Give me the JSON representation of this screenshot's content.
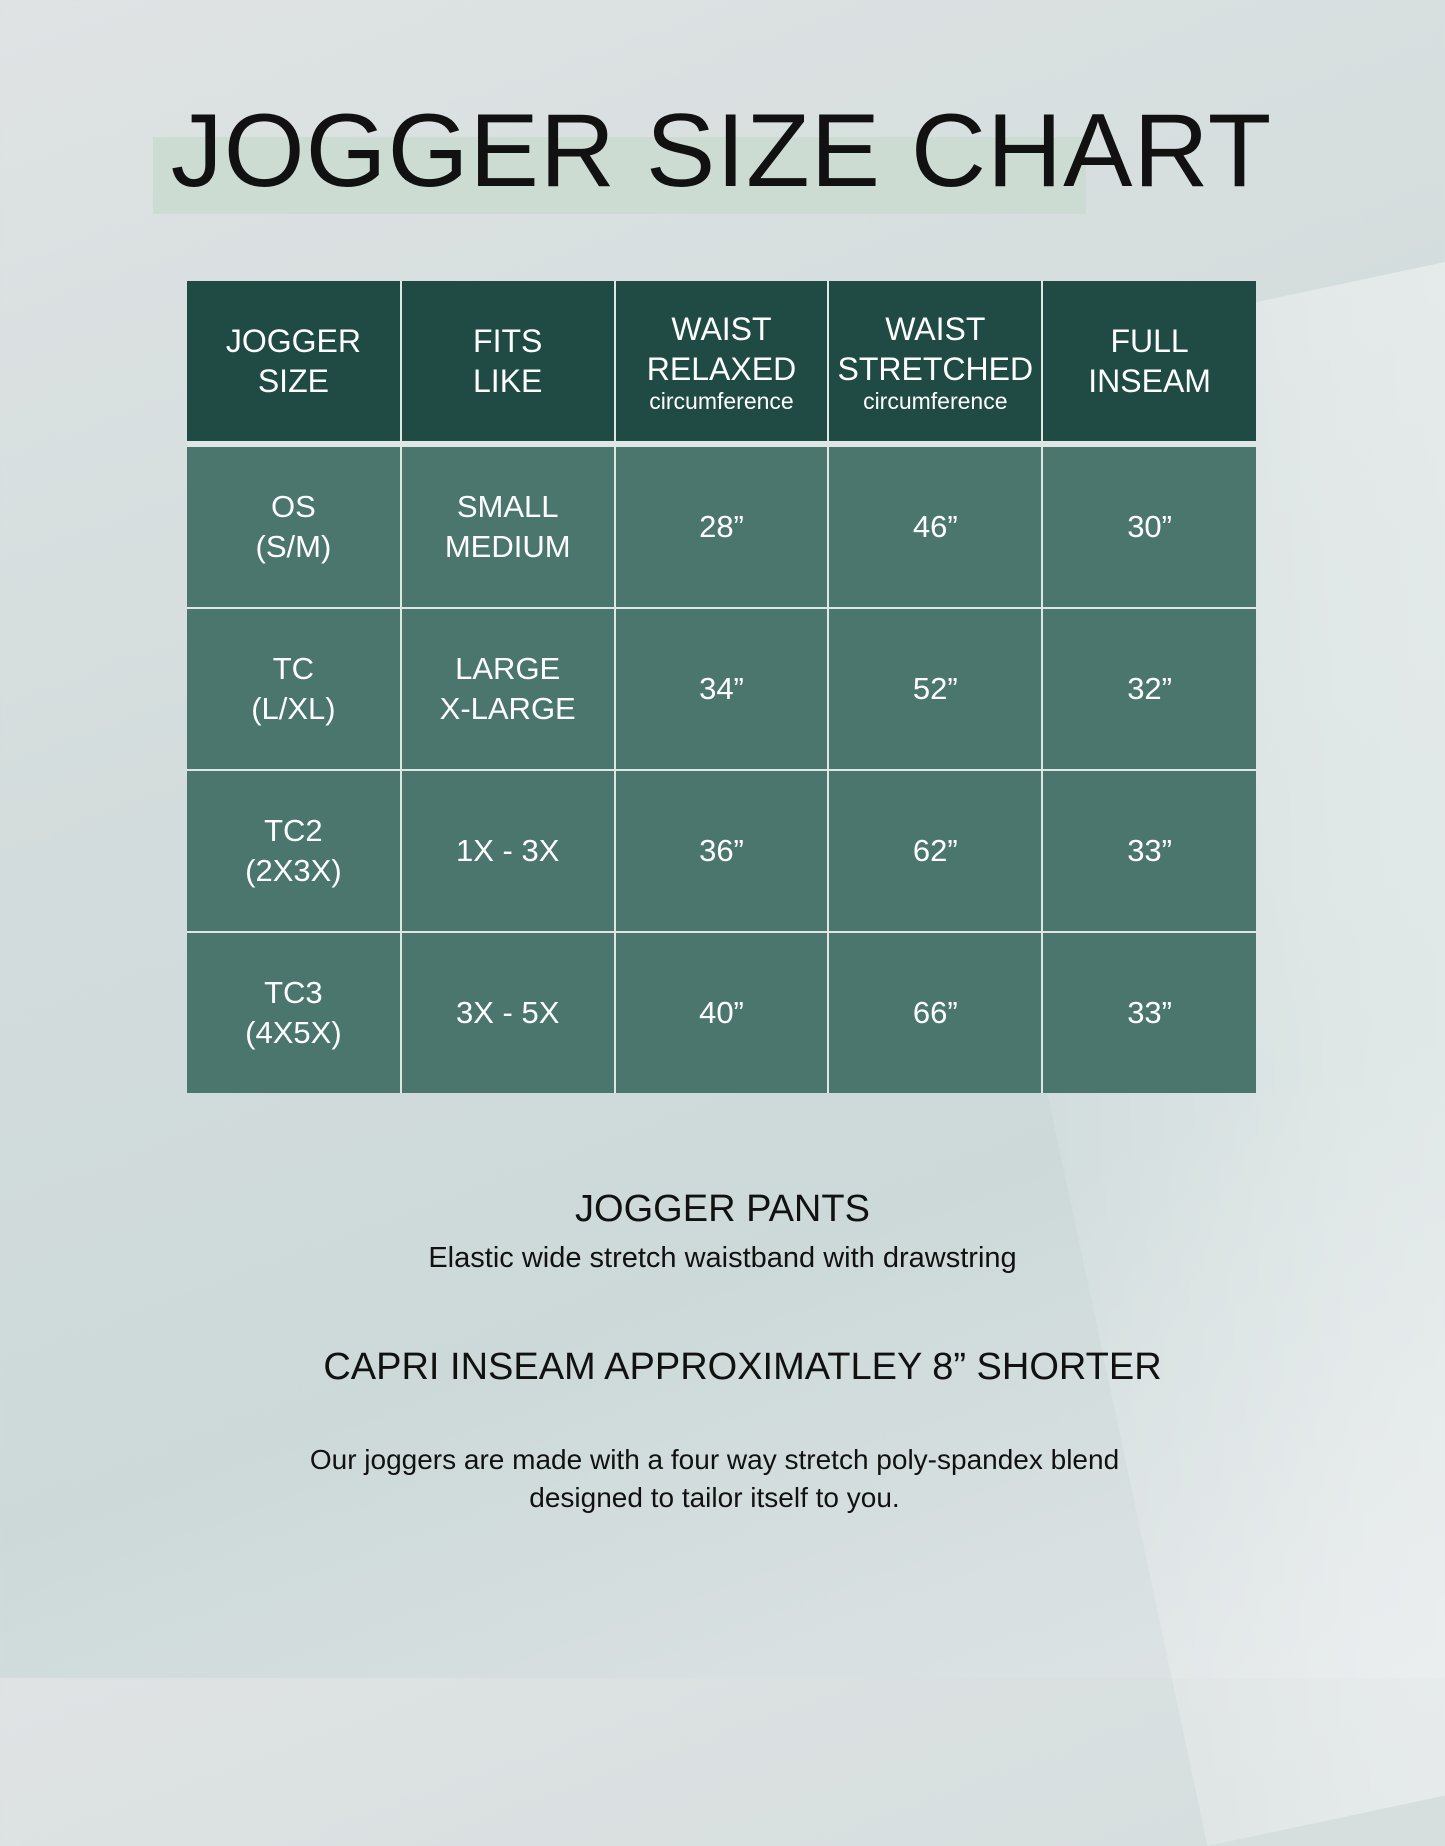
{
  "title": "JOGGER SIZE CHART",
  "colors": {
    "header_bg": "#1f4b44",
    "row_bg": "#4b766e",
    "title_highlight": "#ccdcd3"
  },
  "table": {
    "headers": [
      {
        "line1": "JOGGER",
        "line2": "SIZE",
        "sub": ""
      },
      {
        "line1": "FITS",
        "line2": "LIKE",
        "sub": ""
      },
      {
        "line1": "WAIST",
        "line2": "RELAXED",
        "sub": "circumference"
      },
      {
        "line1": "WAIST",
        "line2": "STRETCHED",
        "sub": "circumference"
      },
      {
        "line1": "FULL",
        "line2": "INSEAM",
        "sub": ""
      }
    ],
    "rows": [
      {
        "size1": "OS",
        "size2": "(S/M)",
        "fit1": "SMALL",
        "fit2": "MEDIUM",
        "relaxed": "28”",
        "stretched": "46”",
        "inseam": "30”"
      },
      {
        "size1": "TC",
        "size2": "(L/XL)",
        "fit1": "LARGE",
        "fit2": "X-LARGE",
        "relaxed": "34”",
        "stretched": "52”",
        "inseam": "32”"
      },
      {
        "size1": "TC2",
        "size2": "(2X3X)",
        "fit1": "1X - 3X",
        "fit2": "",
        "relaxed": "36”",
        "stretched": "62”",
        "inseam": "33”"
      },
      {
        "size1": "TC3",
        "size2": "(4X5X)",
        "fit1": "3X - 5X",
        "fit2": "",
        "relaxed": "40”",
        "stretched": "66”",
        "inseam": "33”"
      }
    ]
  },
  "notes": {
    "heading": "JOGGER PANTS",
    "waistband": "Elastic wide stretch waistband with drawstring",
    "capri": "CAPRI INSEAM APPROXIMATLEY 8” SHORTER",
    "fabric_line1": "Our joggers are made with a four way stretch poly-spandex blend",
    "fabric_line2": "designed to tailor itself to you."
  }
}
